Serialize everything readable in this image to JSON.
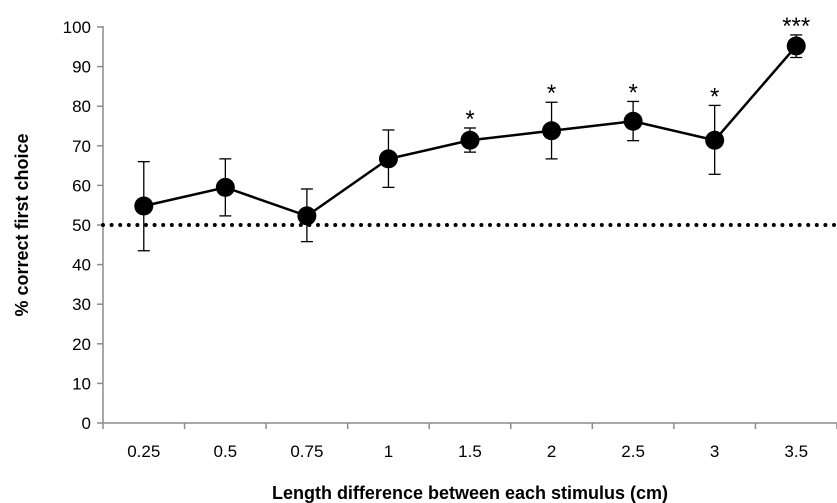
{
  "chart_data": {
    "type": "line",
    "title": "",
    "xlabel": "Length difference between each stimulus (cm)",
    "ylabel": "% correct first choice",
    "ylim": [
      0,
      100
    ],
    "yticks": [
      "0",
      "10",
      "20",
      "30",
      "40",
      "50",
      "60",
      "70",
      "80",
      "90",
      "100"
    ],
    "categories": [
      "0.25",
      "0.5",
      "0.75",
      "1",
      "1.5",
      "2",
      "2.5",
      "3",
      "3.5"
    ],
    "series": [
      {
        "values": [
          54.8,
          59.5,
          52.3,
          66.7,
          71.4,
          73.8,
          76.2,
          71.4,
          95.2
        ],
        "error_upper": [
          66.0,
          66.7,
          59.1,
          74.0,
          74.5,
          81.0,
          81.2,
          80.2,
          98.0
        ],
        "error_lower": [
          43.5,
          52.3,
          45.8,
          59.5,
          68.4,
          66.7,
          71.3,
          62.8,
          92.3
        ]
      }
    ],
    "reference_line": {
      "y": 50,
      "style": "dotted"
    },
    "significance": [
      "",
      "",
      "",
      "",
      "*",
      "*",
      "*",
      "*",
      "***"
    ],
    "grid": false,
    "legend": "none"
  }
}
